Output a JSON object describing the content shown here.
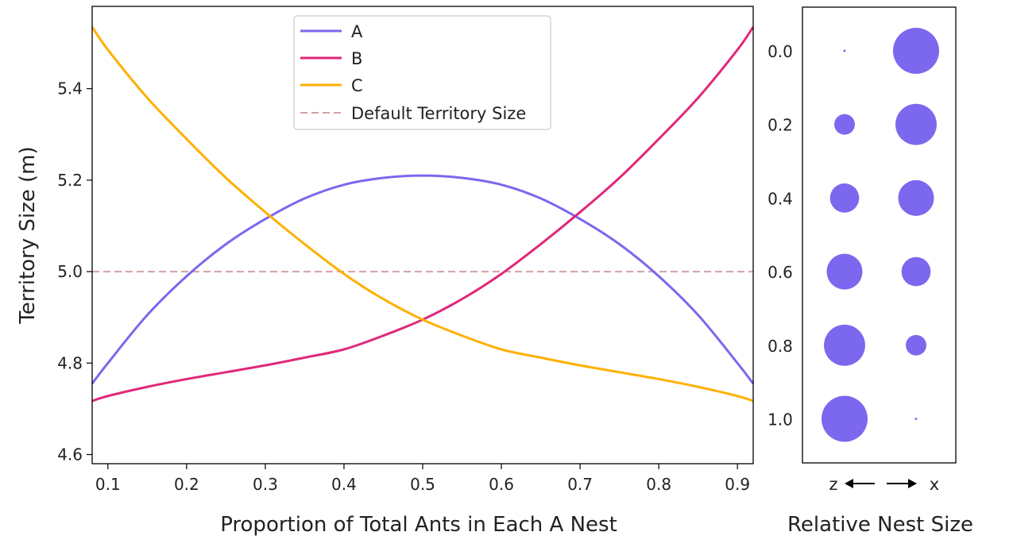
{
  "chart_data": [
    {
      "type": "line",
      "xlabel": "Proportion of Total Ants in Each A Nest",
      "ylabel": "Territory Size (m)",
      "xlim": [
        0.08,
        0.92
      ],
      "ylim": [
        4.58,
        5.58
      ],
      "x_ticks": [
        "0.1",
        "0.2",
        "0.3",
        "0.4",
        "0.5",
        "0.6",
        "0.7",
        "0.8",
        "0.9"
      ],
      "y_ticks": [
        "4.6",
        "4.8",
        "5.0",
        "5.2",
        "5.4"
      ],
      "grid": false,
      "legend_position": "top-center",
      "x": [
        0.08,
        0.1,
        0.15,
        0.2,
        0.25,
        0.3,
        0.35,
        0.4,
        0.45,
        0.5,
        0.55,
        0.6,
        0.65,
        0.7,
        0.75,
        0.8,
        0.85,
        0.9,
        0.92
      ],
      "series": [
        {
          "name": "A",
          "color": "#7B68EE",
          "style": "solid",
          "values": [
            4.755,
            4.8,
            4.905,
            4.99,
            5.06,
            5.115,
            5.16,
            5.19,
            5.205,
            5.21,
            5.205,
            5.19,
            5.16,
            5.115,
            5.06,
            4.99,
            4.905,
            4.8,
            4.755
          ]
        },
        {
          "name": "B",
          "color": "#E0287A",
          "style": "solid",
          "values": [
            4.717,
            4.728,
            4.748,
            4.765,
            4.78,
            4.795,
            4.812,
            4.83,
            4.86,
            4.895,
            4.94,
            4.995,
            5.06,
            5.13,
            5.205,
            5.29,
            5.38,
            5.485,
            5.535
          ]
        },
        {
          "name": "C",
          "color": "#FFB000",
          "style": "solid",
          "values": [
            5.535,
            5.485,
            5.38,
            5.29,
            5.205,
            5.13,
            5.06,
            4.995,
            4.94,
            4.895,
            4.86,
            4.83,
            4.812,
            4.795,
            4.78,
            4.765,
            4.748,
            4.728,
            4.717
          ]
        },
        {
          "name": "Default Territory Size",
          "color": "#D4A0A4",
          "style": "dashed",
          "values": [
            5.0,
            5.0,
            5.0,
            5.0,
            5.0,
            5.0,
            5.0,
            5.0,
            5.0,
            5.0,
            5.0,
            5.0,
            5.0,
            5.0,
            5.0,
            5.0,
            5.0,
            5.0,
            5.0
          ]
        }
      ]
    },
    {
      "type": "scatter",
      "xlabel": "Relative Nest Size",
      "direction_left_label": "z",
      "direction_right_label": "x",
      "color": "#7B68EE",
      "rows": [
        {
          "label": "0.0",
          "z": 0.0,
          "x": 1.0
        },
        {
          "label": "0.2",
          "z": 0.2,
          "x": 0.8
        },
        {
          "label": "0.4",
          "z": 0.4,
          "x": 0.6
        },
        {
          "label": "0.6",
          "z": 0.6,
          "x": 0.4
        },
        {
          "label": "0.8",
          "z": 0.8,
          "x": 0.2
        },
        {
          "label": "1.0",
          "z": 1.0,
          "x": 0.0
        }
      ]
    }
  ]
}
